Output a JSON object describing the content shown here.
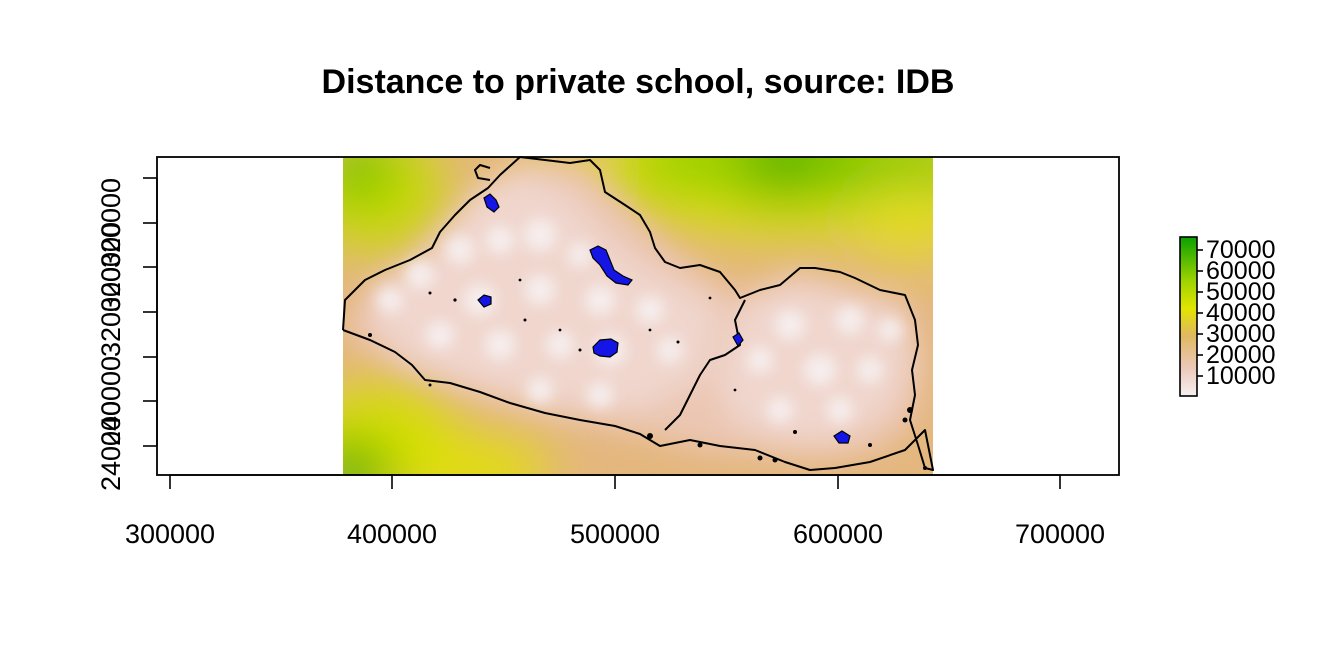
{
  "title": "Distance to private school, source: IDB",
  "map": {
    "x_ticks": [
      "300000",
      "400000",
      "500000",
      "600000",
      "700000"
    ],
    "y_ticks": [
      "240000",
      "320000"
    ],
    "x_range": [
      295000,
      727000
    ],
    "y_range": [
      228000,
      370000
    ],
    "raster_extent": {
      "xmin": 378000,
      "xmax": 643000
    },
    "raster_palette": [
      "#f5f0f0",
      "#ecc8b9",
      "#e3ad88",
      "#dcc058",
      "#e2e400",
      "#9bd200",
      "#2daa00"
    ],
    "urban_fill_color": "#1515e6",
    "background_color": "#ffffff"
  },
  "legend": {
    "labels": [
      "70000",
      "60000",
      "50000",
      "40000",
      "30000",
      "20000",
      "10000"
    ],
    "colors_top_to_bottom": [
      "#0aa000",
      "#6ac200",
      "#b4d800",
      "#e2e400",
      "#e0b850",
      "#e8c4ab",
      "#f5ecec"
    ]
  }
}
